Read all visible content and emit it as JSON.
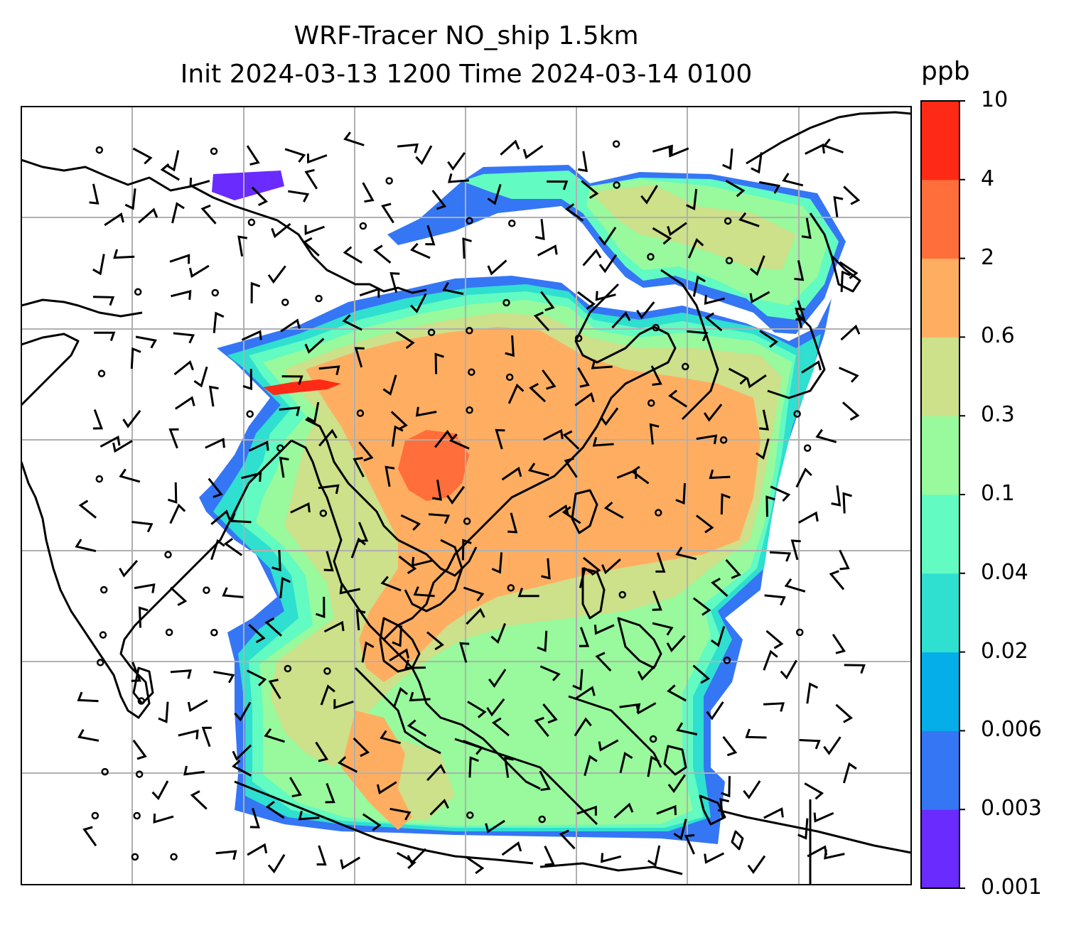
{
  "title": {
    "line1": "WRF-Tracer NO_ship 1.5km",
    "line2": "Init 2024-03-13 1200 Time 2024-03-14 0100"
  },
  "colorbar": {
    "unit": "ppb",
    "levels": [
      "0.001",
      "0.003",
      "0.006",
      "0.02",
      "0.04",
      "0.1",
      "0.3",
      "0.6",
      "2",
      "4",
      "10"
    ],
    "colors": [
      "#6a2bff",
      "#3576f5",
      "#05aee8",
      "#2fdfd0",
      "#62fbc1",
      "#98f99d",
      "#cde08a",
      "#ffae61",
      "#ff6e3b",
      "#ff2a15"
    ]
  },
  "map": {
    "background": "#ffffff",
    "gridline_color": "#b0b0b0",
    "coastline_color": "#000000",
    "wind_barb_color": "#000000"
  }
}
